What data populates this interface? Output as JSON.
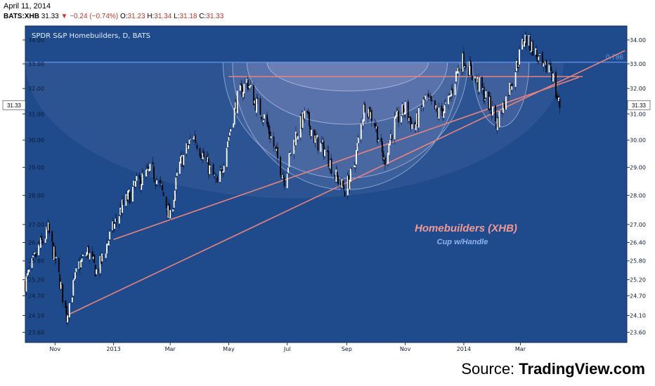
{
  "header": {
    "date": "April 11, 2014",
    "symbol": "BATS:XHB",
    "last": "31.33",
    "change": "▼ −0.24 (−0.74%)",
    "ohlc": [
      {
        "label": "O:",
        "value": "31.23"
      },
      {
        "label": "H:",
        "value": "31.34"
      },
      {
        "label": "L:",
        "value": "31.18"
      },
      {
        "label": "C:",
        "value": "31.33"
      }
    ]
  },
  "source": {
    "prefix": "Source: ",
    "brand": "TradingView.com"
  },
  "colors": {
    "background": "#1f4a8c",
    "candle_up": "#ffffff",
    "candle_down": "#000000",
    "trendline": "#e8837d",
    "fib_line": "#5b8be0",
    "cup_fill": "#c9b8ea",
    "price_tag": "#ffffff"
  },
  "chart_data": {
    "type": "candlestick",
    "title": "SPDR S&P Homebuilders, D, BATS",
    "annotation_title": "Homebuilders (XHB)",
    "annotation_subtitle": "Cup w/Handle",
    "fib_label": "0.786",
    "last_price_label": "31.33",
    "y_ticks": [
      "23.60",
      "24.10",
      "24.70",
      "25.20",
      "25.80",
      "26.40",
      "27.00",
      "28.00",
      "29.00",
      "30.00",
      "31.00",
      "32.00",
      "33.00",
      "34.00"
    ],
    "x_ticks": [
      "Nov",
      "2013",
      "Mar",
      "May",
      "Jul",
      "Sep",
      "Nov",
      "2014",
      "Mar"
    ],
    "x_tick_dates": [
      "2012-11-01",
      "2013-01-01",
      "2013-03-01",
      "2013-05-01",
      "2013-07-01",
      "2013-09-01",
      "2013-11-01",
      "2014-01-01",
      "2014-03-01"
    ],
    "x_range": [
      "2012-10-01",
      "2014-06-20"
    ],
    "y_scale": "log",
    "ylim": [
      23.3,
      34.6
    ],
    "fib_level": 33.07,
    "resistance_level": 32.48,
    "trendlines": [
      {
        "from": [
          "2012-11-13",
          24.1
        ],
        "to": [
          "2014-06-18",
          33.55
        ]
      },
      {
        "from": [
          "2013-01-01",
          26.5
        ],
        "to": [
          "2014-05-01",
          32.45
        ]
      }
    ],
    "price_path": [
      [
        "2012-10-01",
        25.1
      ],
      [
        "2012-10-15",
        26.2
      ],
      [
        "2012-10-25",
        26.8
      ],
      [
        "2012-11-05",
        25.3
      ],
      [
        "2012-11-13",
        24.1
      ],
      [
        "2012-11-25",
        25.6
      ],
      [
        "2012-12-05",
        26.1
      ],
      [
        "2012-12-15",
        25.4
      ],
      [
        "2012-12-28",
        26.6
      ],
      [
        "2013-01-10",
        27.6
      ],
      [
        "2013-01-25",
        28.4
      ],
      [
        "2013-02-10",
        28.9
      ],
      [
        "2013-02-20",
        28.2
      ],
      [
        "2013-03-01",
        27.2
      ],
      [
        "2013-03-10",
        29.0
      ],
      [
        "2013-03-25",
        30.2
      ],
      [
        "2013-04-10",
        29.0
      ],
      [
        "2013-04-20",
        28.3
      ],
      [
        "2013-04-30",
        30.0
      ],
      [
        "2013-05-10",
        31.6
      ],
      [
        "2013-05-20",
        32.3
      ],
      [
        "2013-05-28",
        31.5
      ],
      [
        "2013-06-08",
        30.8
      ],
      [
        "2013-06-20",
        29.4
      ],
      [
        "2013-06-28",
        28.6
      ],
      [
        "2013-07-10",
        30.2
      ],
      [
        "2013-07-20",
        31.0
      ],
      [
        "2013-07-30",
        30.0
      ],
      [
        "2013-08-10",
        29.6
      ],
      [
        "2013-08-20",
        28.7
      ],
      [
        "2013-08-30",
        28.2
      ],
      [
        "2013-09-08",
        28.9
      ],
      [
        "2013-09-20",
        31.4
      ],
      [
        "2013-09-30",
        30.7
      ],
      [
        "2013-10-10",
        29.2
      ],
      [
        "2013-10-20",
        30.6
      ],
      [
        "2013-11-01",
        31.2
      ],
      [
        "2013-11-10",
        30.4
      ],
      [
        "2013-11-22",
        31.6
      ],
      [
        "2013-12-05",
        31.0
      ],
      [
        "2013-12-15",
        31.3
      ],
      [
        "2013-12-25",
        32.7
      ],
      [
        "2014-01-01",
        33.2
      ],
      [
        "2014-01-10",
        32.6
      ],
      [
        "2014-01-20",
        31.9
      ],
      [
        "2014-01-30",
        31.2
      ],
      [
        "2014-02-04",
        30.6
      ],
      [
        "2014-02-15",
        31.7
      ],
      [
        "2014-02-25",
        32.9
      ],
      [
        "2014-03-05",
        34.1
      ],
      [
        "2014-03-15",
        33.6
      ],
      [
        "2014-03-25",
        32.7
      ],
      [
        "2014-04-01",
        33.0
      ],
      [
        "2014-04-07",
        31.8
      ],
      [
        "2014-04-11",
        31.3
      ]
    ]
  }
}
